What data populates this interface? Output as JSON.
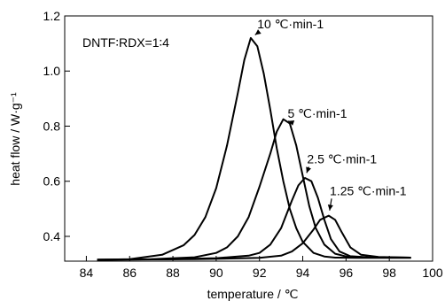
{
  "chart_data": {
    "type": "line",
    "xlabel": "temperature / ℃",
    "ylabel": "heat flow / W·g⁻¹",
    "xlim": [
      83,
      100
    ],
    "ylim": [
      0.31,
      1.2
    ],
    "xticks": [
      84,
      86,
      88,
      90,
      92,
      94,
      96,
      98,
      100
    ],
    "yticks": [
      0.4,
      0.6,
      0.8,
      1.0,
      1.2
    ],
    "xtick_labels": [
      "84",
      "86",
      "88",
      "90",
      "92",
      "94",
      "96",
      "98",
      "100"
    ],
    "ytick_labels": [
      "0.4",
      "0.6",
      "0.8",
      "1.0",
      "1.2"
    ],
    "grid": false,
    "legend": "none",
    "annotation": "DNTF∶RDX=1∶4",
    "series": [
      {
        "name": "10 ℃·min⁻¹",
        "label": "10 ℃·min-1",
        "peak_x": 91.6,
        "peak_y": 1.12,
        "label_x": 91.9,
        "label_y": 1.155,
        "x": [
          84.5,
          86.0,
          87.5,
          88.5,
          89.0,
          89.5,
          90.0,
          90.5,
          91.0,
          91.3,
          91.6,
          91.9,
          92.2,
          92.5,
          92.8,
          93.1,
          93.4,
          93.7,
          94.0,
          94.5,
          95.0,
          95.5,
          96.5,
          98.0,
          99.0
        ],
        "y": [
          0.315,
          0.317,
          0.333,
          0.368,
          0.405,
          0.47,
          0.575,
          0.73,
          0.92,
          1.04,
          1.12,
          1.09,
          0.99,
          0.86,
          0.72,
          0.6,
          0.5,
          0.43,
          0.38,
          0.34,
          0.327,
          0.323,
          0.322,
          0.322,
          0.322
        ]
      },
      {
        "name": "5 ℃·min⁻¹",
        "label": "5 ℃·min-1",
        "peak_x": 93.1,
        "peak_y": 0.825,
        "label_x": 93.3,
        "label_y": 0.83,
        "x": [
          84.5,
          87.0,
          89.0,
          90.0,
          90.5,
          91.0,
          91.5,
          92.0,
          92.5,
          92.8,
          93.1,
          93.4,
          93.7,
          94.0,
          94.3,
          94.6,
          95.0,
          95.5,
          96.0,
          97.0,
          99.0
        ],
        "y": [
          0.315,
          0.317,
          0.324,
          0.34,
          0.36,
          0.4,
          0.47,
          0.58,
          0.7,
          0.78,
          0.825,
          0.81,
          0.73,
          0.62,
          0.51,
          0.43,
          0.37,
          0.337,
          0.327,
          0.324,
          0.323
        ]
      },
      {
        "name": "2.5 ℃·min⁻¹",
        "label": "2.5 ℃·min-1",
        "peak_x": 94.1,
        "peak_y": 0.612,
        "label_x": 94.2,
        "label_y": 0.665,
        "x": [
          84.5,
          88.0,
          90.0,
          91.5,
          92.0,
          92.5,
          93.0,
          93.5,
          93.8,
          94.1,
          94.4,
          94.7,
          95.0,
          95.3,
          95.7,
          96.2,
          97.0,
          99.0
        ],
        "y": [
          0.315,
          0.317,
          0.321,
          0.33,
          0.34,
          0.37,
          0.43,
          0.53,
          0.585,
          0.612,
          0.6,
          0.54,
          0.46,
          0.39,
          0.345,
          0.328,
          0.324,
          0.323
        ]
      },
      {
        "name": "1.25 ℃·min⁻¹",
        "label": "1.25 ℃·min-1",
        "peak_x": 95.2,
        "peak_y": 0.475,
        "label_x": 95.25,
        "label_y": 0.55,
        "x": [
          84.5,
          89.0,
          92.0,
          93.0,
          93.5,
          94.0,
          94.5,
          94.8,
          95.2,
          95.5,
          95.8,
          96.2,
          96.7,
          97.5,
          99.0
        ],
        "y": [
          0.315,
          0.317,
          0.322,
          0.33,
          0.345,
          0.375,
          0.425,
          0.46,
          0.475,
          0.46,
          0.415,
          0.36,
          0.333,
          0.325,
          0.323
        ]
      }
    ]
  }
}
